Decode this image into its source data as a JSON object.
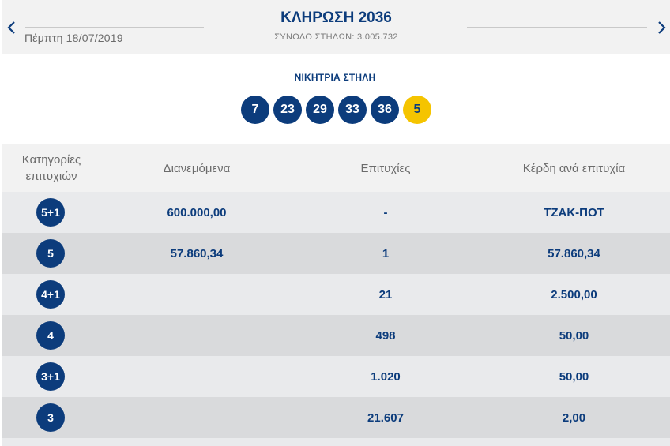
{
  "header": {
    "prev_icon": "chevron-left-icon",
    "next_icon": "chevron-right-icon",
    "date": "Πέμπτη 18/07/2019",
    "title": "ΚΛΗΡΩΣΗ 2036",
    "subtitle": "ΣΥΝΟΛΟ ΣΤΗΛΩΝ: 3.005.732"
  },
  "winning": {
    "label": "ΝΙΚΗΤΡΙΑ ΣΤΗΛΗ",
    "numbers": [
      "7",
      "23",
      "29",
      "33",
      "36"
    ],
    "bonus": "5"
  },
  "table": {
    "headers": [
      "Κατηγορίες επιτυχιών",
      "Διανεμόμενα",
      "Επιτυχίες",
      "Κέρδη ανά επιτυχία"
    ],
    "rows": [
      {
        "category": "5+1",
        "distributed": "600.000,00",
        "winners": "-",
        "prize": "ΤΖΑΚ-ΠΟΤ"
      },
      {
        "category": "5",
        "distributed": "57.860,34",
        "winners": "1",
        "prize": "57.860,34"
      },
      {
        "category": "4+1",
        "distributed": "",
        "winners": "21",
        "prize": "2.500,00"
      },
      {
        "category": "4",
        "distributed": "",
        "winners": "498",
        "prize": "50,00"
      },
      {
        "category": "3+1",
        "distributed": "",
        "winners": "1.020",
        "prize": "50,00"
      },
      {
        "category": "3",
        "distributed": "",
        "winners": "21.607",
        "prize": "2,00"
      }
    ]
  },
  "colors": {
    "primary": "#0c3c7c",
    "bonus": "#f5c400",
    "header_bg": "#f2f2f2",
    "row_light": "#e9eaec",
    "row_dark": "#d9dadc"
  }
}
